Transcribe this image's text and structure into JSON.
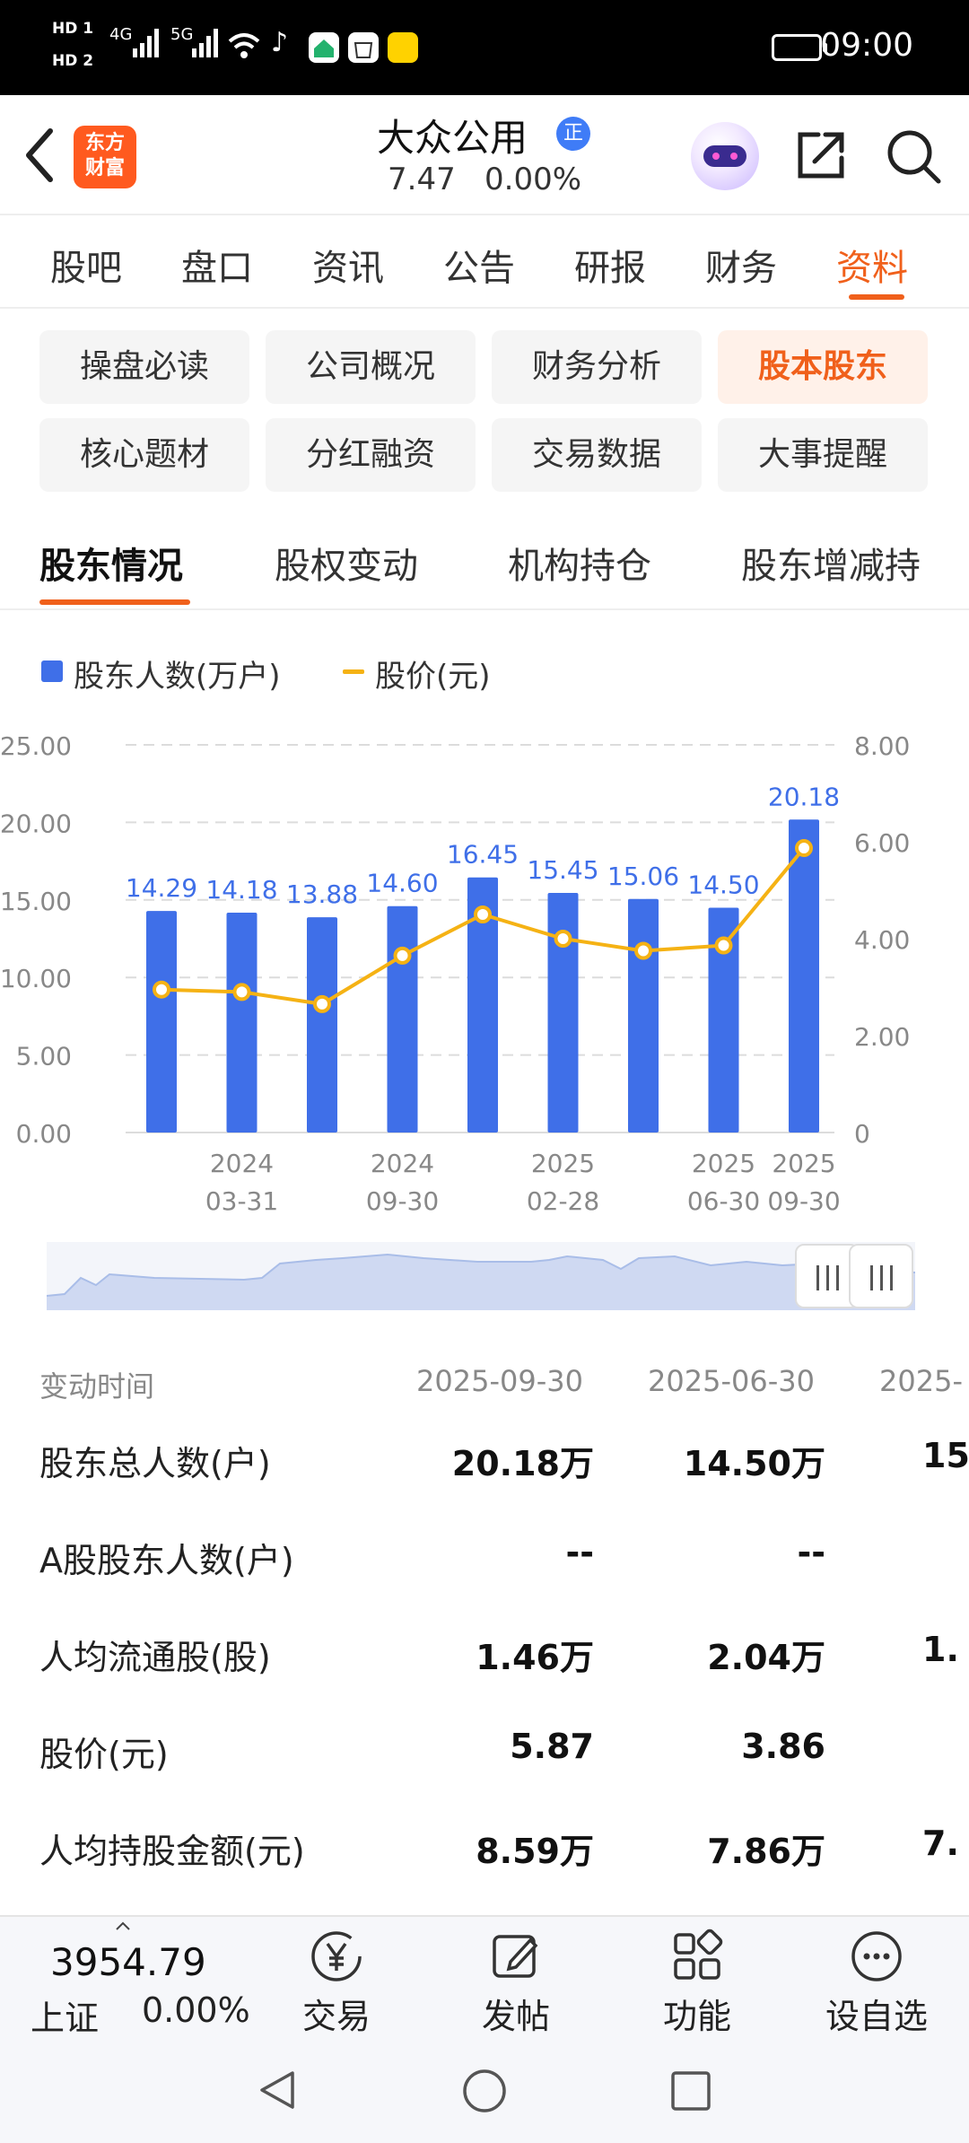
{
  "status_bar": {
    "time": "09:00",
    "hd1": "HD 1",
    "hd2": "HD 2",
    "net1": "4G",
    "net2": "5G"
  },
  "header": {
    "logo_text_1": "东方",
    "logo_text_2": "财富",
    "stock_name": "大众公用",
    "verify_badge": "正",
    "price": "7.47",
    "change": "0.00%"
  },
  "tabs": [
    {
      "label": "股吧"
    },
    {
      "label": "盘口"
    },
    {
      "label": "资讯"
    },
    {
      "label": "公告"
    },
    {
      "label": "研报"
    },
    {
      "label": "财务"
    },
    {
      "label": "资料"
    }
  ],
  "active_tab": "资料",
  "chips": [
    {
      "label": "操盘必读"
    },
    {
      "label": "公司概况"
    },
    {
      "label": "财务分析"
    },
    {
      "label": "股本股东"
    },
    {
      "label": "核心题材"
    },
    {
      "label": "分红融资"
    },
    {
      "label": "交易数据"
    },
    {
      "label": "大事提醒"
    }
  ],
  "active_chip": "股本股东",
  "section_tabs": [
    {
      "label": "股东情况"
    },
    {
      "label": "股权变动"
    },
    {
      "label": "机构持仓"
    },
    {
      "label": "股东增减持"
    }
  ],
  "chart_data": {
    "type": "bar",
    "legend": [
      {
        "name": "股东人数(万户)",
        "color": "#3f6fe8",
        "kind": "bar"
      },
      {
        "name": "股价(元)",
        "color": "#f5b214",
        "kind": "line"
      }
    ],
    "left_axis": {
      "ticks": [
        "25.00",
        "20.00",
        "15.00",
        "10.00",
        "5.00",
        "0.00"
      ],
      "range": [
        0,
        25
      ]
    },
    "right_axis": {
      "ticks": [
        "8.00",
        "6.00",
        "4.00",
        "2.00",
        "0"
      ],
      "range": [
        0,
        8
      ]
    },
    "x_tick_labels": [
      {
        "index": 1,
        "line1": "2024",
        "line2": "03-31"
      },
      {
        "index": 3,
        "line1": "2024",
        "line2": "09-30"
      },
      {
        "index": 5,
        "line1": "2025",
        "line2": "02-28"
      },
      {
        "index": 7,
        "line1": "2025",
        "line2": "06-30"
      },
      {
        "index": 8,
        "line1": "2025",
        "line2": "09-30"
      }
    ],
    "bars": [
      14.29,
      14.18,
      13.88,
      14.6,
      16.45,
      15.45,
      15.06,
      14.5,
      20.18
    ],
    "bar_labels": [
      "14.29",
      "14.18",
      "13.88",
      "14.60",
      "16.45",
      "15.45",
      "15.06",
      "14.50",
      "20.18"
    ],
    "line": [
      2.95,
      2.9,
      2.65,
      3.65,
      4.5,
      4.0,
      3.75,
      3.86,
      5.87
    ],
    "grid": true
  },
  "table": {
    "header_label": "变动时间",
    "columns": [
      "2025-09-30",
      "2025-06-30",
      "2025-"
    ],
    "rows": [
      {
        "label": "股东总人数(户)",
        "values": [
          "20.18万",
          "14.50万",
          "15."
        ]
      },
      {
        "label": "A股股东人数(户)",
        "values": [
          "--",
          "--",
          ""
        ]
      },
      {
        "label": "人均流通股(股)",
        "values": [
          "1.46万",
          "2.04万",
          "1."
        ]
      },
      {
        "label": "股价(元)",
        "values": [
          "5.87",
          "3.86",
          ""
        ]
      },
      {
        "label": "人均持股金额(元)",
        "values": [
          "8.59万",
          "7.86万",
          "7."
        ]
      }
    ]
  },
  "bottom_bar": {
    "index_value": "3954.79",
    "index_name": "上证",
    "index_change": "0.00%",
    "items": [
      {
        "label": "交易",
        "icon": "yen-circle-icon"
      },
      {
        "label": "发帖",
        "icon": "edit-icon"
      },
      {
        "label": "功能",
        "icon": "grid-icon"
      },
      {
        "label": "设自选",
        "icon": "more-circle-icon"
      }
    ]
  }
}
